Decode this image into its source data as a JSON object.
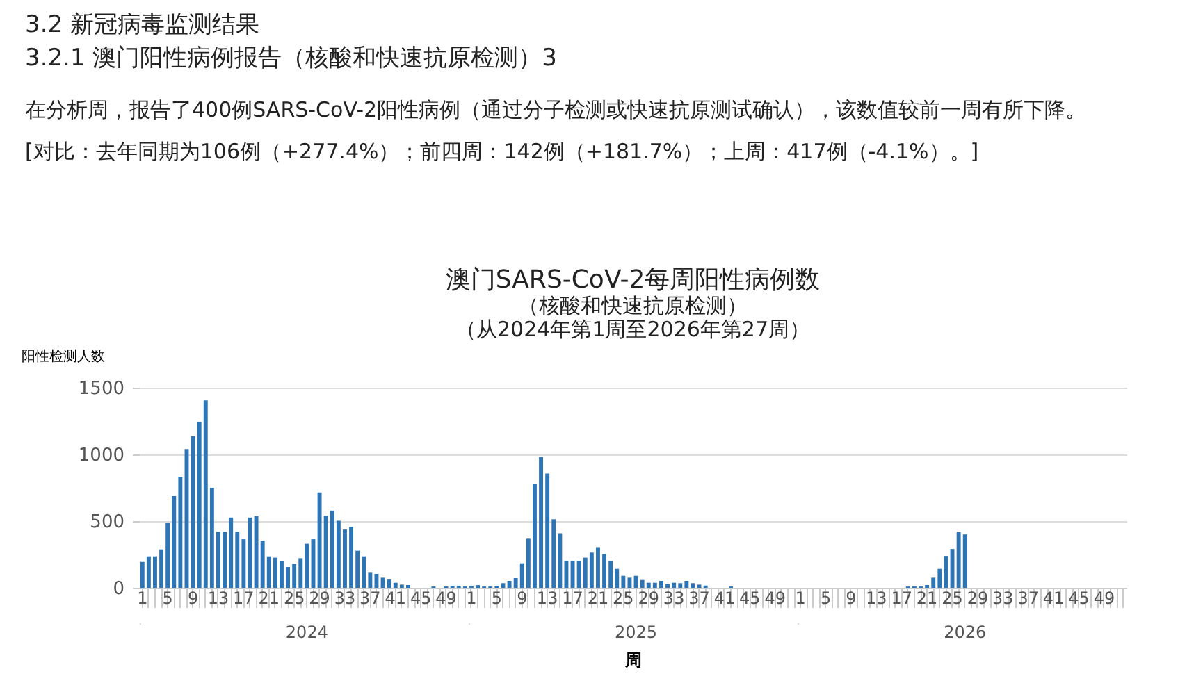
{
  "chart_data": {
    "type": "bar",
    "title": "澳门SARS-CoV-2每周阳性病例数",
    "subtitle": "（核酸和快速抗原检测）",
    "xlabel": "周",
    "ylabel": "阳性检测人数",
    "annotations": [
      "3.2 新冠病毒监测结果",
      "3.2.1 澳门阳性病例报告（核酸和快速抗原检测）3",
      "在分析周，报告了400例SARS-CoV-2阳性病例（通过分子检测或快速抗原测试确认），该数值较前一周有所下降。",
      "[对比：去年同期为106例（+277.4%）；前四周：142例（+181.7%）；上周：417例（-4.1%）。]",
      "（从2024年第1周至2026年第27周）",
      "2024",
      "2025",
      "2026"
    ],
    "categories": [
      "1",
      null,
      null,
      null,
      "5",
      null,
      null,
      null,
      "9",
      null,
      null,
      null,
      "13",
      null,
      null,
      null,
      "17",
      null,
      null,
      null,
      "21",
      null,
      null,
      null,
      "25",
      null,
      null,
      null,
      "29",
      null,
      null,
      null,
      "33",
      null,
      null,
      null,
      "37",
      null,
      null,
      null,
      "41",
      null,
      null,
      null,
      "45",
      null,
      null,
      null,
      "49",
      null,
      null,
      null,
      "1",
      null,
      null,
      null,
      "5",
      null,
      null,
      null,
      "9",
      null,
      null,
      null,
      "13",
      null,
      null,
      null,
      "17",
      null,
      null,
      null,
      "21",
      null,
      null,
      null,
      "25",
      null,
      null,
      null,
      "29",
      null,
      null,
      null,
      "33",
      null,
      null,
      null,
      "37",
      null,
      null,
      null,
      "41",
      null,
      null,
      null,
      "45",
      null,
      null,
      null,
      "49",
      null,
      null,
      null,
      "1",
      null,
      null,
      null,
      "5",
      null,
      null,
      null,
      "9",
      null,
      null,
      null,
      "13",
      null,
      null,
      null,
      "17",
      null,
      null,
      null,
      "21",
      null,
      null,
      null,
      "25",
      null,
      null,
      null,
      "29",
      null,
      null,
      null,
      "33",
      null,
      null,
      null,
      "37",
      null,
      null,
      null,
      "41",
      null,
      null,
      null,
      "45",
      null,
      null,
      null,
      "49",
      null,
      null,
      null
    ],
    "values": [
      194,
      236,
      236,
      288,
      489,
      687,
      833,
      1041,
      1135,
      1242,
      1405,
      750,
      420,
      420,
      527,
      420,
      364,
      527,
      538,
      354,
      236,
      226,
      198,
      156,
      180,
      222,
      330,
      364,
      715,
      541,
      579,
      503,
      437,
      458,
      278,
      236,
      118,
      104,
      76,
      62,
      38,
      24,
      21,
      0,
      0,
      0,
      10,
      0,
      10,
      15,
      15,
      10,
      15,
      20,
      10,
      10,
      10,
      35,
      52,
      73,
      184,
      368,
      781,
      982,
      857,
      514,
      409,
      201,
      201,
      201,
      226,
      264,
      305,
      253,
      201,
      142,
      90,
      76,
      90,
      59,
      38,
      38,
      52,
      31,
      38,
      35,
      52,
      35,
      24,
      17,
      0,
      0,
      0,
      10,
      0,
      0,
      0,
      0,
      0,
      0,
      0,
      0,
      0,
      0,
      0,
      0,
      0,
      0,
      0,
      0,
      0,
      0,
      0,
      0,
      0,
      0,
      0,
      0,
      0,
      0,
      0,
      10,
      10,
      10,
      21,
      76,
      142,
      239,
      291,
      417,
      400,
      null,
      null,
      null,
      null,
      null,
      null,
      null,
      null,
      null,
      null,
      null,
      null,
      null,
      null,
      null,
      null,
      null,
      null,
      null,
      null,
      null,
      null,
      null,
      null,
      null
    ],
    "color": "#2e75b6",
    "ylim": [
      0,
      1500
    ],
    "yticks": [
      0,
      500,
      1000,
      1500
    ],
    "grid": "y"
  }
}
